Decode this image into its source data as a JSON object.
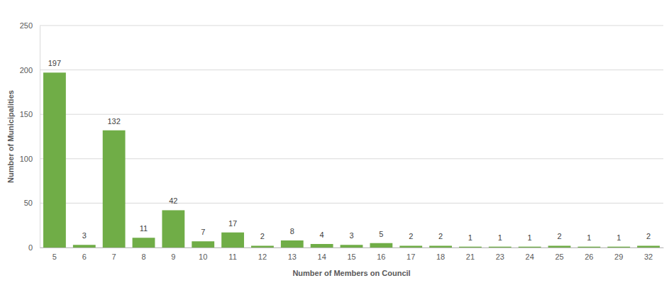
{
  "chart_data": {
    "type": "bar",
    "x_label": "Number of Members on Council",
    "y_label": "Number of Municipalities",
    "categories": [
      "5",
      "6",
      "7",
      "8",
      "9",
      "10",
      "11",
      "12",
      "13",
      "14",
      "15",
      "16",
      "17",
      "18",
      "21",
      "23",
      "24",
      "25",
      "26",
      "29",
      "32"
    ],
    "values": [
      197,
      3,
      132,
      11,
      42,
      7,
      17,
      2,
      8,
      4,
      3,
      5,
      2,
      2,
      1,
      1,
      1,
      2,
      1,
      1,
      2
    ],
    "color": "#70ad47",
    "ylim": [
      0,
      250
    ],
    "yticks": [
      0,
      50,
      100,
      150,
      200,
      250
    ],
    "grid": true,
    "data_labels": true
  }
}
